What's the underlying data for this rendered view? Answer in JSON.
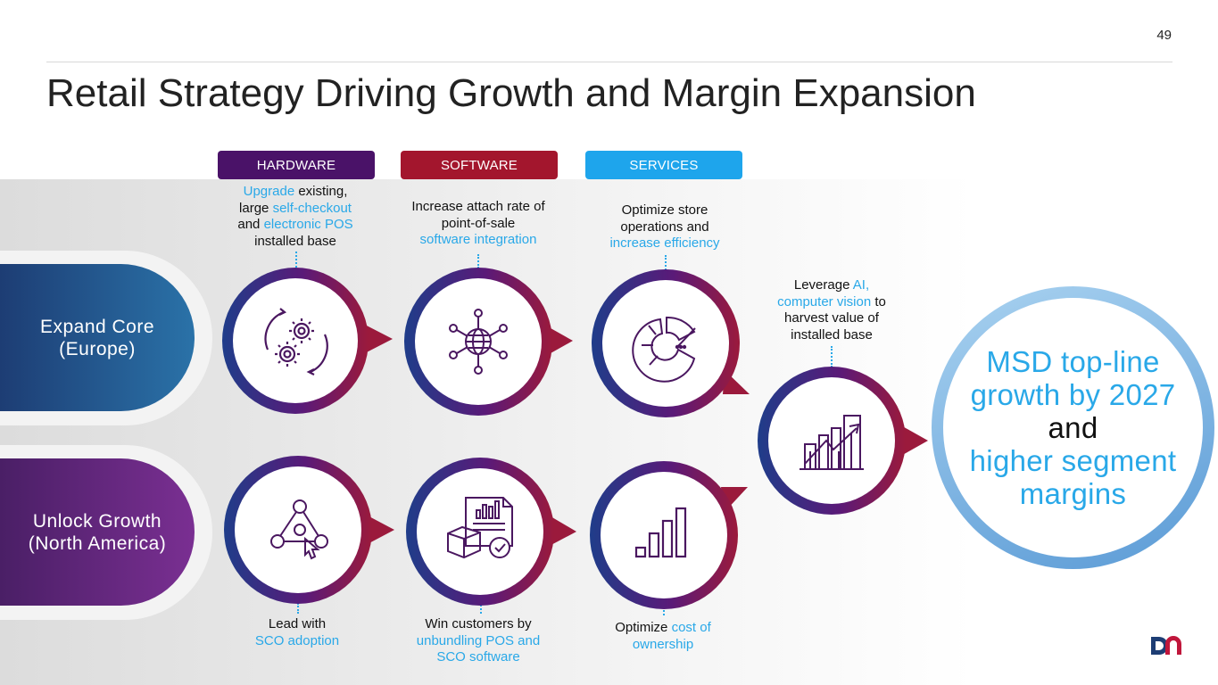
{
  "page_number": "49",
  "title": "Retail Strategy Driving Growth and Margin Expansion",
  "columns": [
    {
      "label": "HARDWARE",
      "color": "#4a1268"
    },
    {
      "label": "SOFTWARE",
      "color": "#a3162d"
    },
    {
      "label": "SERVICES",
      "color": "#1ea5ec"
    }
  ],
  "rows": [
    {
      "label_line1": "Expand Core",
      "label_line2": "(Europe)"
    },
    {
      "label_line1": "Unlock Growth",
      "label_line2": "(North America)"
    }
  ],
  "top_texts": {
    "hardware": {
      "l1a": "Upgrade",
      "l1b": " existing,",
      "l2a": "large ",
      "l2b": "self-checkout",
      "l3a": "and ",
      "l3b": "electronic POS",
      "l4": "installed base"
    },
    "software": {
      "l1": "Increase attach rate of",
      "l2": "point-of-sale",
      "l3": "software integration"
    },
    "services": {
      "l1": "Optimize store",
      "l2": "operations and",
      "l3": "increase efficiency"
    }
  },
  "bottom_texts": {
    "hardware": {
      "l1": "Lead with",
      "l2": "SCO adoption"
    },
    "software": {
      "l1": "Win customers by",
      "l2": "unbundling POS and",
      "l3": "SCO software"
    },
    "services": {
      "l1a": "Optimize ",
      "l1b": "cost of",
      "l2": "ownership"
    }
  },
  "leverage_text": {
    "l1a": "Leverage ",
    "l1b": "AI,",
    "l2a": "computer vision",
    "l2b": " to",
    "l3": "harvest value of",
    "l4": "installed base"
  },
  "goal": {
    "l1": "MSD top-line",
    "l2": "growth by 2027",
    "l3": "and",
    "l4": "higher segment",
    "l5": "margins"
  },
  "icons": [
    "gears-cycle-icon",
    "network-globe-icon",
    "pie-chart-icon",
    "growth-chart-icon",
    "team-network-icon",
    "report-package-icon",
    "bar-chart-icon"
  ],
  "colors": {
    "accent": "#29a8e8",
    "ring_start": "#1f3d8a",
    "ring_end": "#9b1a3c",
    "icon": "#4a1760"
  }
}
